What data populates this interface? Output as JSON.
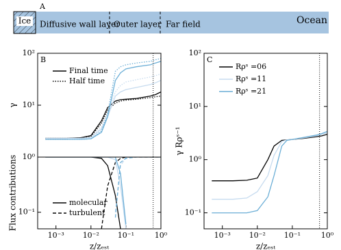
{
  "schematic": {
    "panel": "A",
    "ice": "Ice",
    "regions": [
      "Diffusive wall layer",
      "Outer layer",
      "Far field"
    ],
    "ocean": "Ocean"
  },
  "chart_data": [
    {
      "type": "line",
      "panel": "B",
      "ylabel": "γ",
      "log_x": true,
      "log_y": true,
      "xlim": [
        0.0003,
        1
      ],
      "ylim": [
        1,
        100
      ],
      "yticks": [
        {
          "value": 1,
          "label": "10⁰"
        },
        {
          "value": 10,
          "label": "10¹"
        },
        {
          "value": 100,
          "label": "10²"
        }
      ],
      "x": [
        0.0005,
        0.001,
        0.002,
        0.005,
        0.01,
        0.02,
        0.03,
        0.05,
        0.07,
        0.1,
        0.2,
        0.5,
        0.7,
        1
      ],
      "vline": 0.6,
      "legend_entries": [
        {
          "name": "Final time",
          "dash": "solid"
        },
        {
          "name": "Half time",
          "dash": "dotted"
        }
      ],
      "series": [
        {
          "color": "#000000",
          "dash": "solid",
          "values": [
            2.3,
            2.3,
            2.3,
            2.35,
            2.6,
            5,
            9,
            12,
            12.8,
            13,
            13.5,
            15,
            16,
            18
          ]
        },
        {
          "color": "#000000",
          "dash": "dotted",
          "values": [
            2.3,
            2.3,
            2.3,
            2.35,
            2.5,
            4.5,
            8,
            11,
            12,
            12.5,
            13,
            14,
            14.5,
            15
          ]
        },
        {
          "color": "#c6dbef",
          "dash": "solid",
          "values": [
            2.3,
            2.3,
            2.3,
            2.3,
            2.4,
            3.5,
            6,
            15,
            18,
            20,
            22,
            25,
            27,
            30
          ]
        },
        {
          "color": "#c6dbef",
          "dash": "dotted",
          "values": [
            2.3,
            2.3,
            2.3,
            2.3,
            2.4,
            3.8,
            7,
            18,
            24,
            28,
            31,
            35,
            37,
            40
          ]
        },
        {
          "color": "#6baed6",
          "dash": "solid",
          "values": [
            2.2,
            2.2,
            2.2,
            2.2,
            2.25,
            3,
            6,
            30,
            42,
            50,
            55,
            60,
            65,
            70
          ]
        },
        {
          "color": "#6baed6",
          "dash": "dotted",
          "values": [
            2.2,
            2.2,
            2.2,
            2.2,
            2.25,
            3.2,
            7,
            45,
            55,
            60,
            65,
            70,
            75,
            80
          ]
        }
      ]
    },
    {
      "type": "line",
      "ylabel": "Flux contributions",
      "xlabel": "z/zₑₛₜ",
      "log_x": true,
      "log_y": true,
      "xlim": [
        0.0003,
        1
      ],
      "ylim": [
        0.05,
        1
      ],
      "xticks": [
        {
          "value": 0.001,
          "label": "10⁻³"
        },
        {
          "value": 0.01,
          "label": "10⁻²"
        },
        {
          "value": 0.1,
          "label": "10⁻¹"
        },
        {
          "value": 1,
          "label": "10⁰"
        }
      ],
      "yticks": [
        {
          "value": 0.1,
          "label": "10⁻¹"
        }
      ],
      "x": [
        0.0005,
        0.001,
        0.002,
        0.005,
        0.01,
        0.02,
        0.03,
        0.05,
        0.07,
        0.1,
        0.2,
        0.5,
        0.7,
        1
      ],
      "vline": 0.6,
      "legend_entries": [
        {
          "name": "molecular",
          "dash": "solid"
        },
        {
          "name": "turbulent",
          "dash": "dashed"
        }
      ],
      "series": [
        {
          "color": "#000000",
          "dash": "solid",
          "values": [
            1,
            1,
            1,
            1,
            1,
            0.95,
            0.7,
            0.2,
            0.05,
            null,
            null,
            null,
            null,
            null
          ]
        },
        {
          "color": "#000000",
          "dash": "dashed",
          "values": [
            null,
            null,
            null,
            null,
            null,
            0.05,
            0.3,
            0.8,
            0.95,
            1,
            1,
            1,
            1,
            1
          ]
        },
        {
          "color": "#c6dbef",
          "dash": "solid",
          "values": [
            1,
            1,
            1,
            1,
            1,
            1,
            1,
            0.9,
            0.3,
            0.05,
            null,
            null,
            null,
            null
          ]
        },
        {
          "color": "#c6dbef",
          "dash": "dashed",
          "values": [
            null,
            null,
            null,
            null,
            null,
            null,
            null,
            0.1,
            0.7,
            0.98,
            1,
            1,
            1,
            1
          ]
        },
        {
          "color": "#6baed6",
          "dash": "solid",
          "values": [
            1,
            1,
            1,
            1,
            1,
            1,
            1,
            1,
            0.5,
            0.06,
            null,
            null,
            null,
            null
          ]
        },
        {
          "color": "#6baed6",
          "dash": "dashed",
          "values": [
            null,
            null,
            null,
            null,
            null,
            null,
            null,
            0.08,
            0.8,
            0.95,
            1,
            1,
            1,
            1
          ]
        }
      ]
    },
    {
      "type": "line",
      "panel": "C",
      "ylabel": "γ Rρˢ⁻¹",
      "xlabel": "z/zₑₛₜ",
      "log_x": true,
      "log_y": true,
      "xlim": [
        0.0003,
        1
      ],
      "ylim": [
        0.05,
        100
      ],
      "xticks": [
        {
          "value": 0.001,
          "label": "10⁻³"
        },
        {
          "value": 0.01,
          "label": "10⁻²"
        },
        {
          "value": 0.1,
          "label": "10⁻¹"
        },
        {
          "value": 1,
          "label": "10⁰"
        }
      ],
      "yticks": [
        {
          "value": 0.1,
          "label": "10⁻¹"
        },
        {
          "value": 1,
          "label": "10⁰"
        },
        {
          "value": 10,
          "label": "10¹"
        },
        {
          "value": 100,
          "label": "10²"
        }
      ],
      "x": [
        0.0005,
        0.001,
        0.002,
        0.005,
        0.01,
        0.02,
        0.03,
        0.05,
        0.07,
        0.1,
        0.2,
        0.5,
        0.7,
        1
      ],
      "vline": 0.6,
      "series": [
        {
          "name": "Rρˢ =06",
          "color": "#000000",
          "dash": "solid",
          "values": [
            0.4,
            0.4,
            0.4,
            0.41,
            0.45,
            1,
            1.8,
            2.3,
            2.35,
            2.4,
            2.5,
            2.7,
            2.8,
            3
          ]
        },
        {
          "name": "Rρˢ =11",
          "color": "#c6dbef",
          "dash": "solid",
          "values": [
            0.18,
            0.18,
            0.18,
            0.19,
            0.25,
            0.5,
            1.2,
            2.2,
            2.35,
            2.4,
            2.55,
            2.8,
            3,
            3.2
          ]
        },
        {
          "name": "Rρˢ =21",
          "color": "#6baed6",
          "dash": "solid",
          "values": [
            0.1,
            0.1,
            0.1,
            0.1,
            0.11,
            0.2,
            0.5,
            1.8,
            2.3,
            2.4,
            2.6,
            2.9,
            3.1,
            3.4
          ]
        }
      ]
    }
  ]
}
